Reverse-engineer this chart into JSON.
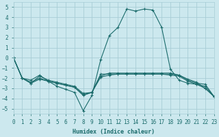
{
  "xlabel": "Humidex (Indice chaleur)",
  "xlim": [
    0,
    23
  ],
  "ylim": [
    -5.5,
    5.5
  ],
  "yticks": [
    -5,
    -4,
    -3,
    -2,
    -1,
    0,
    1,
    2,
    3,
    4,
    5
  ],
  "xticks": [
    0,
    1,
    2,
    3,
    4,
    5,
    6,
    7,
    8,
    9,
    10,
    11,
    12,
    13,
    14,
    15,
    16,
    17,
    18,
    19,
    20,
    21,
    22,
    23
  ],
  "bg_color": "#cce8ee",
  "grid_color": "#a8cdd6",
  "line_color": "#1a6b6b",
  "lines": [
    {
      "x": [
        0,
        1,
        2,
        3,
        4,
        5,
        6,
        7,
        8,
        9,
        10,
        11,
        12,
        13,
        14,
        15,
        16,
        17,
        18,
        19,
        20,
        21,
        22,
        23
      ],
      "y": [
        0,
        -2,
        -2.2,
        -1.7,
        -2.3,
        -2.8,
        -3.1,
        -3.4,
        -5.2,
        -3.7,
        -0.2,
        2.2,
        3.0,
        4.8,
        4.6,
        4.8,
        4.7,
        3.0,
        -1.1,
        -2.2,
        -2.5,
        -2.6,
        -3.0,
        -3.8
      ]
    },
    {
      "x": [
        0,
        1,
        2,
        3,
        4,
        5,
        6,
        7,
        8,
        9,
        10,
        11,
        12,
        13,
        14,
        15,
        16,
        17,
        18,
        19,
        20,
        21,
        22,
        23
      ],
      "y": [
        0,
        -2,
        -2.5,
        -1.8,
        -2.2,
        -2.4,
        -2.6,
        -2.8,
        -3.5,
        -3.4,
        -1.8,
        -1.5,
        -1.5,
        -1.5,
        -1.5,
        -1.5,
        -1.5,
        -1.5,
        -1.5,
        -1.7,
        -2.2,
        -2.5,
        -2.6,
        -3.8
      ]
    },
    {
      "x": [
        0,
        1,
        2,
        3,
        4,
        5,
        6,
        7,
        8,
        9,
        10,
        11,
        12,
        13,
        14,
        15,
        16,
        17,
        18,
        19,
        20,
        21,
        22,
        23
      ],
      "y": [
        0,
        -2,
        -2.5,
        -2.1,
        -2.3,
        -2.5,
        -2.7,
        -2.9,
        -3.6,
        -3.4,
        -1.9,
        -1.7,
        -1.6,
        -1.6,
        -1.6,
        -1.6,
        -1.6,
        -1.6,
        -1.7,
        -1.8,
        -2.3,
        -2.6,
        -2.8,
        -3.8
      ]
    },
    {
      "x": [
        0,
        1,
        2,
        3,
        4,
        5,
        6,
        7,
        8,
        9,
        10,
        11,
        12,
        13,
        14,
        15,
        16,
        17,
        18,
        19,
        20,
        21,
        22,
        23
      ],
      "y": [
        0,
        -2,
        -2.4,
        -2.0,
        -2.3,
        -2.5,
        -2.7,
        -2.9,
        -3.7,
        -3.4,
        -1.6,
        -1.6,
        -1.6,
        -1.6,
        -1.6,
        -1.6,
        -1.6,
        -1.6,
        -1.6,
        -1.7,
        -2.1,
        -2.4,
        -3.0,
        -3.8
      ]
    }
  ]
}
